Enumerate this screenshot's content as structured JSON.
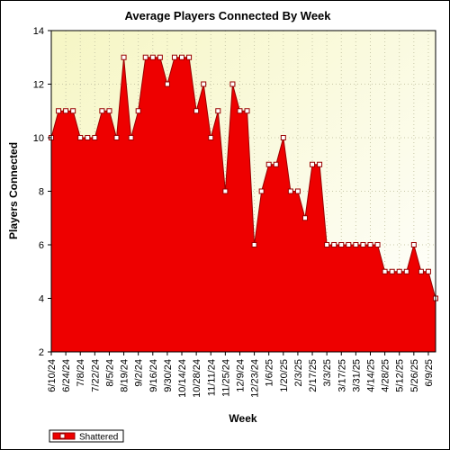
{
  "chart_data": {
    "type": "area",
    "title": "Average Players Connected By Week",
    "xlabel": "Week",
    "ylabel": "Players Connected",
    "ylim": [
      2,
      14
    ],
    "yticks": [
      2,
      4,
      6,
      8,
      10,
      12,
      14
    ],
    "x_tick_labels": [
      "6/10/24",
      "6/24/24",
      "7/8/24",
      "7/22/24",
      "8/5/24",
      "8/19/24",
      "9/2/24",
      "9/16/24",
      "9/30/24",
      "10/14/24",
      "10/28/24",
      "11/11/24",
      "11/25/24",
      "12/9/24",
      "12/23/24",
      "1/6/25",
      "1/20/25",
      "2/3/25",
      "2/17/25",
      "3/3/25",
      "3/17/25",
      "3/31/25",
      "4/14/25",
      "4/28/25",
      "5/12/25",
      "5/26/25",
      "6/9/25"
    ],
    "grid": true,
    "legend_position": "bottom-left",
    "colors": {
      "fill": "#ee0000",
      "line": "#990000",
      "marker_fill": "#ffffff",
      "plot_bg_top": "#f6f6c4",
      "plot_bg_bottom": "#ffffff"
    },
    "series": [
      {
        "name": "Shattered",
        "values": [
          10,
          11,
          11,
          11,
          10,
          10,
          10,
          11,
          11,
          10,
          13,
          10,
          11,
          13,
          13,
          13,
          12,
          13,
          13,
          13,
          11,
          12,
          10,
          11,
          8,
          12,
          11,
          11,
          6,
          8,
          9,
          9,
          10,
          8,
          8,
          7,
          9,
          9,
          6,
          6,
          6,
          6,
          6,
          6,
          6,
          6,
          5,
          5,
          5,
          5,
          6,
          5,
          5,
          4
        ]
      }
    ]
  }
}
